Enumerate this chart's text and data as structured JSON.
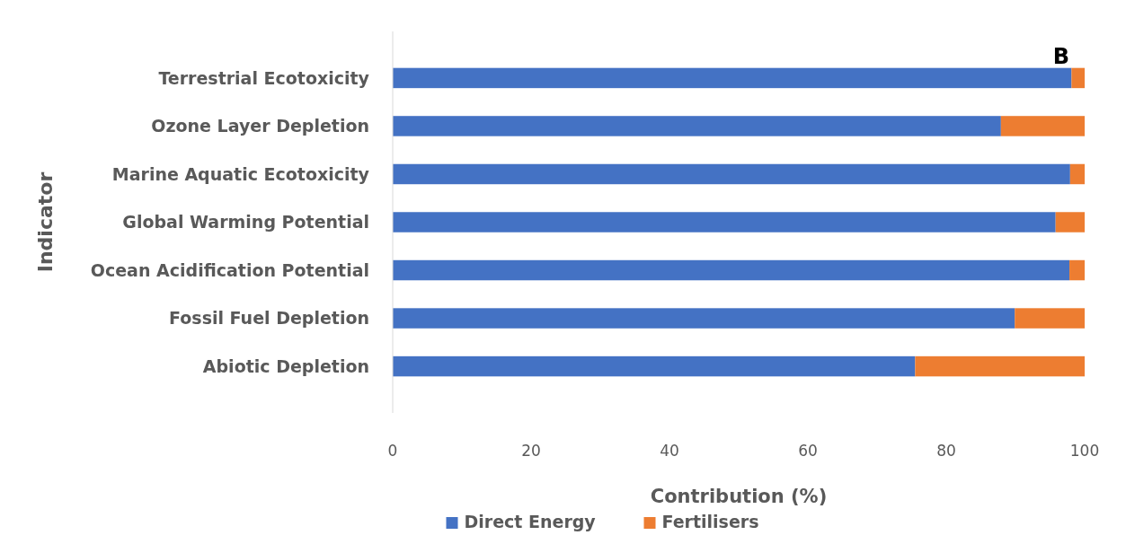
{
  "chart_data": {
    "type": "bar",
    "orientation": "horizontal",
    "stacked": true,
    "title": "B",
    "xlabel": "Contribution (%)",
    "ylabel": "Indicator",
    "categories": [
      "Terrestrial Ecotoxicity",
      "Ozone Layer Depletion",
      "Marine Aquatic Ecotoxicity",
      "Global Warming Potential",
      "Ocean Acidification Potential",
      "Fossil Fuel Depletion",
      "Abiotic Depletion"
    ],
    "series": [
      {
        "name": "Direct Energy",
        "color": "#4472c4",
        "values": [
          98.1,
          87.9,
          97.9,
          95.8,
          97.8,
          89.9,
          75.5
        ]
      },
      {
        "name": "Fertilisers",
        "color": "#ed7d31",
        "values": [
          1.9,
          12.1,
          2.1,
          4.2,
          2.2,
          10.1,
          24.5
        ]
      }
    ],
    "xlim": [
      0,
      100
    ],
    "xticks": [
      0,
      20,
      40,
      60,
      80,
      100
    ],
    "grid": false,
    "legend": "bottom"
  }
}
